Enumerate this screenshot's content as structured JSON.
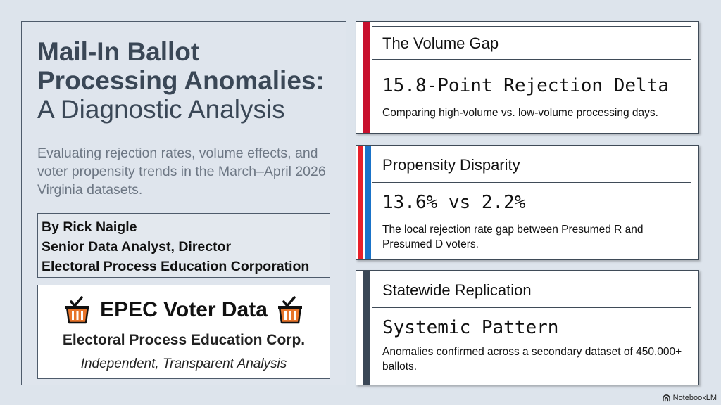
{
  "left": {
    "title_line1": "Mail-In Ballot",
    "title_line2": "Processing Anomalies:",
    "title_line3": "A Diagnostic Analysis",
    "subtitle": "Evaluating rejection rates, volume effects, and voter propensity trends in the March–April 2026 Virginia datasets.",
    "byline": {
      "author": "By Rick Naigle",
      "role": "Senior Data Analyst, Director",
      "org": "Electoral Process Education Corporation"
    },
    "logo": {
      "title": "EPEC Voter Data",
      "org": "Electoral Process Education Corp.",
      "tagline": "Independent, Transparent Analysis",
      "icon": "ballot-box-icon"
    }
  },
  "cards": [
    {
      "heading": "The Volume Gap",
      "value": "15.8-Point Rejection Delta",
      "description": "Comparing high-volume vs. low-volume processing days.",
      "accent_colors": [
        "#c8102e"
      ]
    },
    {
      "heading": "Propensity Disparity",
      "value": "13.6% vs 2.2%",
      "description": "The local rejection rate gap between Presumed R and Presumed D voters.",
      "accent_colors": [
        "#e8202a",
        "#1a73c8"
      ]
    },
    {
      "heading": "Statewide Replication",
      "value": "Systemic Pattern",
      "description": "Anomalies confirmed across a secondary dataset of 450,000+ ballots.",
      "accent_colors": [
        "#3a4756"
      ]
    }
  ],
  "credit": {
    "text": "NotebookLM",
    "icon": "notebooklm-icon"
  }
}
